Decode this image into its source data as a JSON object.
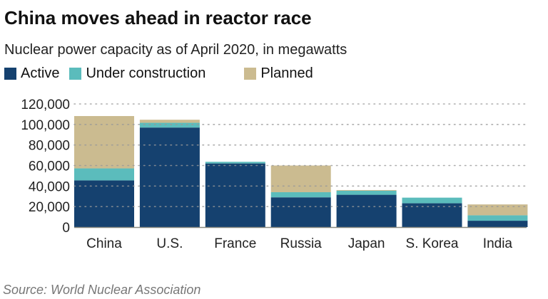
{
  "chart_data": {
    "type": "bar",
    "stacked": true,
    "title": "China moves ahead in reactor race",
    "subtitle": "Nuclear power capacity as of April 2020, in megawatts",
    "categories": [
      "China",
      "U.S.",
      "France",
      "Russia",
      "Japan",
      "S. Korea",
      "India"
    ],
    "series": [
      {
        "name": "Active",
        "color": "#15416f",
        "values": [
          45500,
          97000,
          62000,
          29000,
          31500,
          23200,
          6200
        ]
      },
      {
        "name": "Under construction",
        "color": "#5bbcbc",
        "values": [
          11700,
          4600,
          1600,
          5000,
          3900,
          5500,
          5300
        ]
      },
      {
        "name": "Planned",
        "color": "#cbbb90",
        "values": [
          51000,
          3000,
          0,
          26000,
          700,
          0,
          10600
        ]
      }
    ],
    "yticks": [
      "0",
      "20,000",
      "40,000",
      "60,000",
      "80,000",
      "100,000",
      "120,000"
    ],
    "ytick_values": [
      0,
      20000,
      40000,
      60000,
      80000,
      100000,
      120000
    ],
    "ylim": [
      0,
      120000
    ],
    "grid": true,
    "legend_position": "top-left",
    "xlabel": "",
    "ylabel": ""
  },
  "source": "Source: World Nuclear Association"
}
